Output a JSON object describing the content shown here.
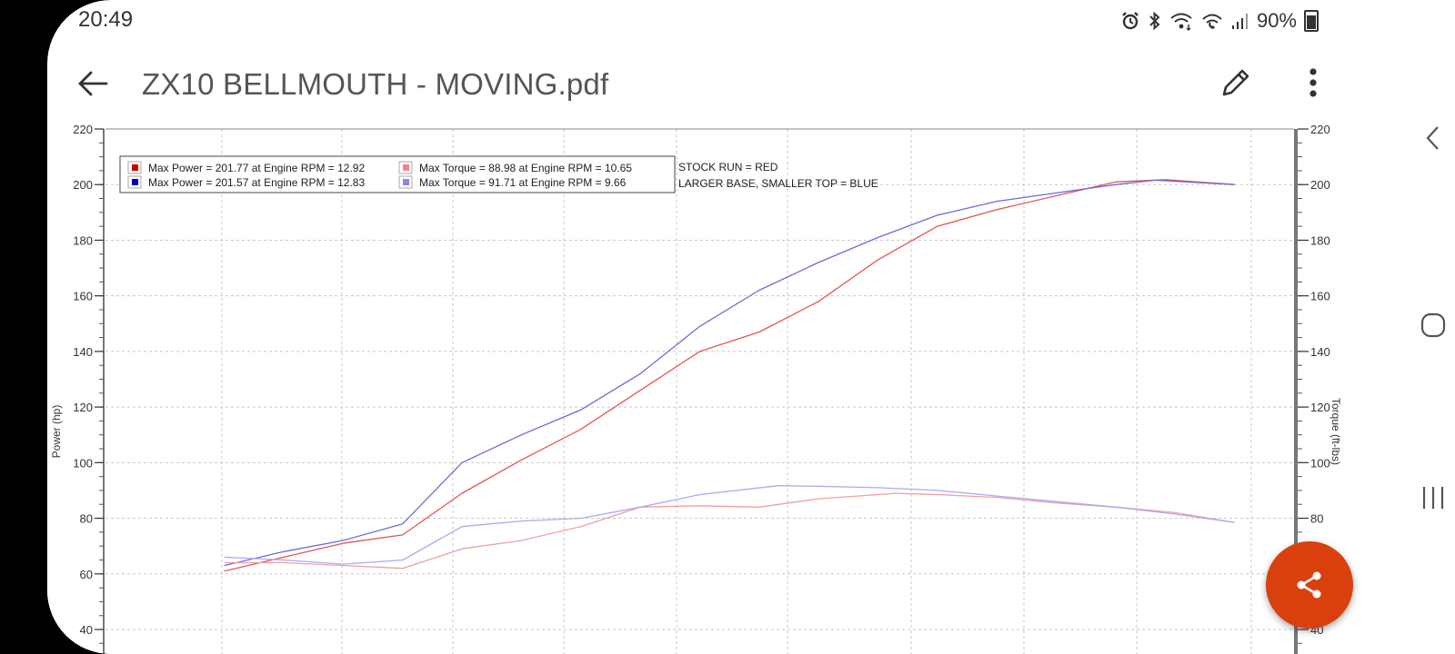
{
  "status_bar": {
    "time": "20:49",
    "battery": "90%"
  },
  "app_bar": {
    "title": "ZX10 BELLMOUTH - MOVING.pdf"
  },
  "colors": {
    "red_run": "#e25555",
    "blue_run": "#6b6bdc",
    "red_torque": "#f0a0a0",
    "blue_torque": "#aaaaf0",
    "fab": "#d9400e"
  },
  "chart_data": {
    "type": "line",
    "ylabel": "Power (hp)",
    "y2label": "Torque (ft-lbs)",
    "ylim": [
      40,
      220
    ],
    "y2lim": [
      40,
      220
    ],
    "yticks": [
      40,
      60,
      80,
      100,
      120,
      140,
      160,
      180,
      200,
      220
    ],
    "xlim": [
      4,
      14
    ],
    "grid": true,
    "legend_position": "top-left",
    "legend": [
      "Max Power = 201.77 at Engine RPM = 12.92",
      "Max Torque = 88.98 at Engine RPM = 10.65",
      "Max Power = 201.57 at Engine RPM = 12.83",
      "Max Torque = 91.71 at Engine RPM = 9.66"
    ],
    "annotations": [
      "STOCK RUN = RED",
      "LARGER BASE, SMALLER TOP = BLUE"
    ],
    "series": [
      {
        "color": "#e25555",
        "x": [
          5.0,
          5.5,
          6.0,
          6.5,
          7.0,
          7.5,
          8.0,
          8.5,
          9.0,
          9.5,
          10.0,
          10.5,
          11.0,
          11.5,
          12.0,
          12.5,
          12.92,
          13.5
        ],
        "y": [
          61,
          66,
          71,
          74,
          89,
          101,
          112,
          126,
          140,
          147,
          158,
          173,
          185,
          191,
          196,
          201,
          201.77,
          200
        ]
      },
      {
        "color": "#6b6bdc",
        "x": [
          5.0,
          5.5,
          6.0,
          6.5,
          7.0,
          7.5,
          8.0,
          8.5,
          9.0,
          9.5,
          10.0,
          10.5,
          11.0,
          11.5,
          12.0,
          12.5,
          12.83,
          13.5
        ],
        "y": [
          63,
          68,
          72,
          78,
          100,
          110,
          119,
          132,
          149,
          162,
          172,
          181,
          189,
          194,
          197,
          200,
          201.57,
          200
        ]
      },
      {
        "color": "#f0a0a0",
        "x": [
          5.0,
          5.5,
          6.0,
          6.5,
          7.0,
          7.5,
          8.0,
          8.5,
          9.0,
          9.5,
          10.0,
          10.65,
          11.0,
          11.5,
          12.0,
          12.5,
          13.0,
          13.5
        ],
        "y": [
          64,
          64,
          63,
          62,
          69,
          72,
          77,
          84,
          84.5,
          84,
          87,
          88.98,
          88.5,
          87.5,
          85.5,
          84,
          82,
          78.5
        ]
      },
      {
        "color": "#aaaaf0",
        "x": [
          5.0,
          5.5,
          6.0,
          6.5,
          7.0,
          7.5,
          8.0,
          8.5,
          9.0,
          9.66,
          10.0,
          10.5,
          11.0,
          11.5,
          12.0,
          12.5,
          13.0,
          13.5
        ],
        "y": [
          66,
          65,
          63.5,
          65,
          77,
          79,
          80,
          84,
          88.5,
          91.71,
          91.5,
          91,
          90,
          88,
          86,
          84,
          81.5,
          78.5
        ]
      }
    ]
  }
}
